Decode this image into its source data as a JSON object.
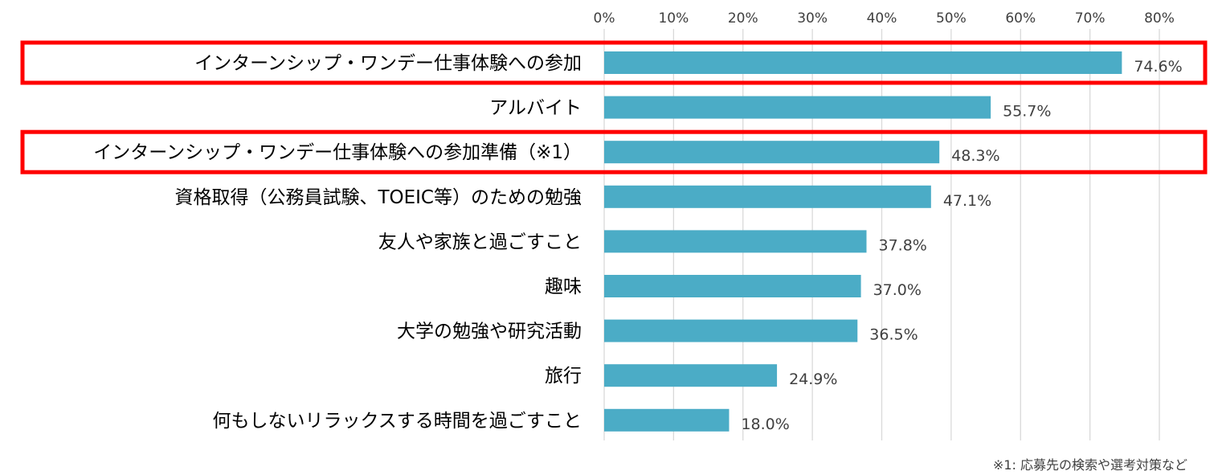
{
  "colors": {
    "bar": "#4BACC6",
    "grid": "#D9D9D9",
    "highlight": "#FF0000"
  },
  "chart_data": {
    "type": "bar",
    "orientation": "horizontal",
    "title": "",
    "xlabel": "",
    "ylabel": "",
    "xlim": [
      0,
      80
    ],
    "ticks": [
      0,
      10,
      20,
      30,
      40,
      50,
      60,
      70,
      80
    ],
    "tick_labels": [
      "0%",
      "10%",
      "20%",
      "30%",
      "40%",
      "50%",
      "60%",
      "70%",
      "80%"
    ],
    "grid": true,
    "categories": [
      "インターンシップ・ワンデー仕事体験への参加",
      "アルバイト",
      "インターンシップ・ワンデー仕事体験への参加準備（※1）",
      "資格取得（公務員試験、TOEIC等）のための勉強",
      "友人や家族と過ごすこと",
      "趣味",
      "大学の勉強や研究活動",
      "旅行",
      "何もしないリラックスする時間を過ごすこと"
    ],
    "values": [
      74.6,
      55.7,
      48.3,
      47.1,
      37.8,
      37.0,
      36.5,
      24.9,
      18.0
    ],
    "value_labels": [
      "74.6%",
      "55.7%",
      "48.3%",
      "47.1%",
      "37.8%",
      "37.0%",
      "36.5%",
      "24.9%",
      "18.0%"
    ],
    "highlighted_categories": [
      0,
      2
    ]
  },
  "footnote": "※1: 応募先の検索や選考対策など"
}
